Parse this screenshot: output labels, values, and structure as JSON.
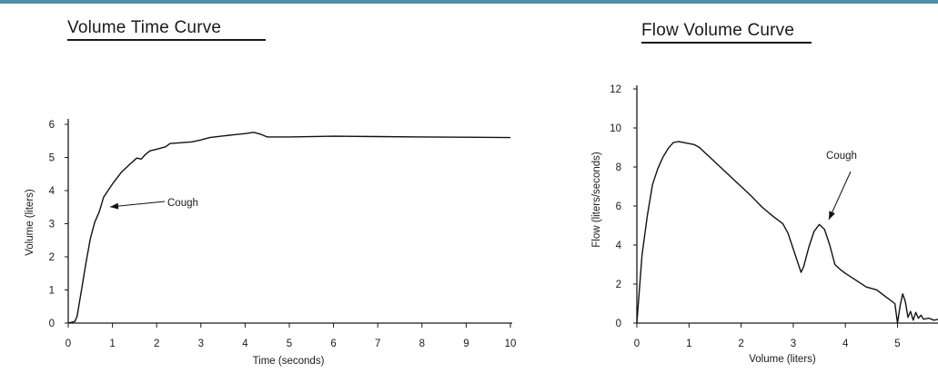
{
  "chart_data": [
    {
      "type": "line",
      "title": "Volume Time Curve",
      "xlabel": "Time (seconds)",
      "ylabel": "Volume (liters)",
      "xlim": [
        0,
        10
      ],
      "ylim": [
        0,
        6
      ],
      "x_ticks": [
        "0",
        "1",
        "2",
        "3",
        "4",
        "5",
        "6",
        "7",
        "8",
        "9",
        "10"
      ],
      "y_ticks": [
        "0",
        "1",
        "2",
        "3",
        "4",
        "5",
        "6"
      ],
      "grid": false,
      "series": [
        {
          "x": [
            0,
            0.15,
            0.2,
            0.3,
            0.4,
            0.5,
            0.6,
            0.7,
            0.8,
            1.0,
            1.2,
            1.4,
            1.55,
            1.65,
            1.75,
            1.85,
            2.0,
            2.2,
            2.3,
            2.5,
            2.8,
            3.0,
            3.2,
            3.5,
            4.0,
            4.2,
            4.35,
            4.5,
            5.0,
            6.0,
            7.0,
            8.0,
            9.0,
            10.0
          ],
          "y": [
            0,
            0.05,
            0.2,
            1.0,
            1.8,
            2.55,
            3.05,
            3.35,
            3.8,
            4.2,
            4.55,
            4.8,
            4.98,
            4.95,
            5.1,
            5.2,
            5.25,
            5.32,
            5.42,
            5.44,
            5.47,
            5.53,
            5.6,
            5.65,
            5.72,
            5.76,
            5.7,
            5.62,
            5.62,
            5.64,
            5.63,
            5.62,
            5.61,
            5.6
          ]
        }
      ],
      "annotation": {
        "text": "Cough",
        "x": 0.93,
        "y": 3.5
      }
    },
    {
      "type": "line",
      "title": "Flow Volume Curve",
      "xlabel": "Volume (liters)",
      "ylabel": "Flow (liters/seconds)",
      "xlim": [
        0,
        6
      ],
      "ylim": [
        0,
        12
      ],
      "x_ticks": [
        "0",
        "1",
        "2",
        "3",
        "4",
        "5"
      ],
      "y_ticks": [
        "0",
        "2",
        "4",
        "6",
        "8",
        "10",
        "12"
      ],
      "grid": false,
      "series": [
        {
          "x": [
            0,
            0.1,
            0.2,
            0.3,
            0.4,
            0.5,
            0.6,
            0.7,
            0.8,
            0.9,
            1.0,
            1.1,
            1.2,
            1.3,
            1.4,
            1.6,
            1.8,
            2.0,
            2.2,
            2.4,
            2.6,
            2.8,
            2.9,
            3.0,
            3.1,
            3.15,
            3.2,
            3.3,
            3.4,
            3.5,
            3.6,
            3.7,
            3.8,
            3.9,
            4.0,
            4.2,
            4.4,
            4.6,
            4.8,
            4.95,
            5.0,
            5.05,
            5.1,
            5.15,
            5.2,
            5.25,
            5.3,
            5.35,
            5.4,
            5.45,
            5.5,
            5.6,
            5.7,
            5.8,
            5.9,
            6.0
          ],
          "y": [
            0,
            3.5,
            5.5,
            7.1,
            7.9,
            8.5,
            8.95,
            9.25,
            9.3,
            9.25,
            9.2,
            9.15,
            9.0,
            8.75,
            8.5,
            8.0,
            7.5,
            7.0,
            6.5,
            5.95,
            5.5,
            5.1,
            4.6,
            3.8,
            3.0,
            2.6,
            2.9,
            3.9,
            4.7,
            5.05,
            4.8,
            4.0,
            3.0,
            2.75,
            2.55,
            2.2,
            1.85,
            1.7,
            1.3,
            1.0,
            0,
            0.9,
            1.5,
            1.1,
            0.3,
            0.6,
            0.15,
            0.55,
            0.25,
            0.4,
            0.2,
            0.25,
            0.15,
            0.2,
            0.1,
            0.1
          ]
        }
      ],
      "annotation": {
        "text": "Cough",
        "x": 3.5,
        "y": 5.15
      }
    }
  ]
}
